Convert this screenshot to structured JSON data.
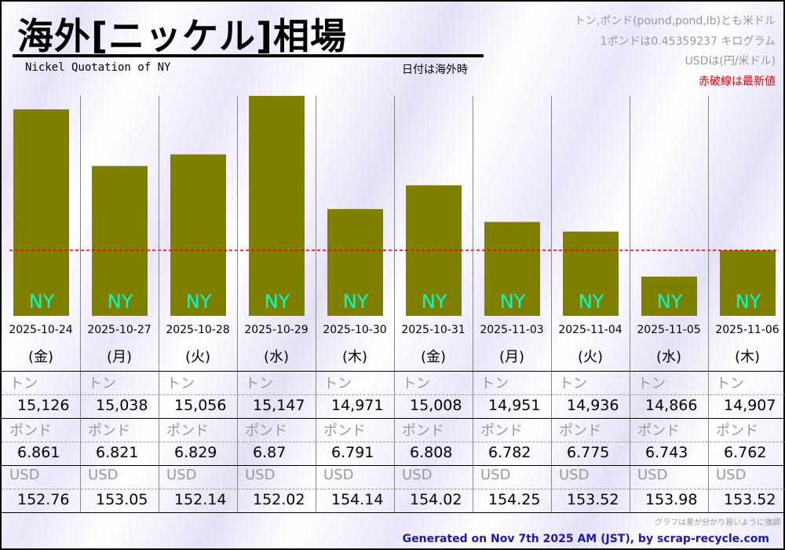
{
  "header": {
    "title": "海外[ニッケル]相場",
    "subtitle": "Nickel Quotation of NY",
    "date_note": "日付は海外時"
  },
  "notes": [
    "トン,ポンド(pound,pond,lb)とも米ドル",
    "1ポンドは0.45359237 キログラム",
    "USDは(円/米ドル)",
    "赤破線は最新値"
  ],
  "colors": {
    "bar": "#808000",
    "bar_label": "#00ffcc",
    "latest_line": "#e00000"
  },
  "labels": {
    "ton": "トン",
    "pound": "ポンド",
    "usd": "USD"
  },
  "chart_data": {
    "type": "bar",
    "title": "海外[ニッケル]相場",
    "categories": [
      "2025-10-24",
      "2025-10-27",
      "2025-10-28",
      "2025-10-29",
      "2025-10-30",
      "2025-10-31",
      "2025-11-03",
      "2025-11-04",
      "2025-11-05",
      "2025-11-06"
    ],
    "weekdays": [
      "(金)",
      "(月)",
      "(火)",
      "(水)",
      "(木)",
      "(金)",
      "(月)",
      "(火)",
      "(水)",
      "(木)"
    ],
    "bar_label": "NY",
    "series": [
      {
        "name": "トン",
        "values": [
          "15,126",
          "15,038",
          "15,056",
          "15,147",
          "14,971",
          "15,008",
          "14,951",
          "14,936",
          "14,866",
          "14,907"
        ]
      },
      {
        "name": "ポンド",
        "values": [
          "6.861",
          "6.821",
          "6.829",
          "6.87",
          "6.791",
          "6.808",
          "6.782",
          "6.775",
          "6.743",
          "6.762"
        ]
      },
      {
        "name": "USD",
        "values": [
          "152.76",
          "153.05",
          "152.14",
          "152.02",
          "154.14",
          "154.02",
          "154.25",
          "153.52",
          "153.98",
          "153.52"
        ]
      }
    ],
    "ylim": [
      14805,
      15147
    ],
    "latest_value": 14907
  },
  "footer": {
    "graph_note": "グラフは差が分かり易いように強調",
    "generated": "Generated on Nov 7th 2025 AM (JST), by scrap-recycle.com"
  }
}
